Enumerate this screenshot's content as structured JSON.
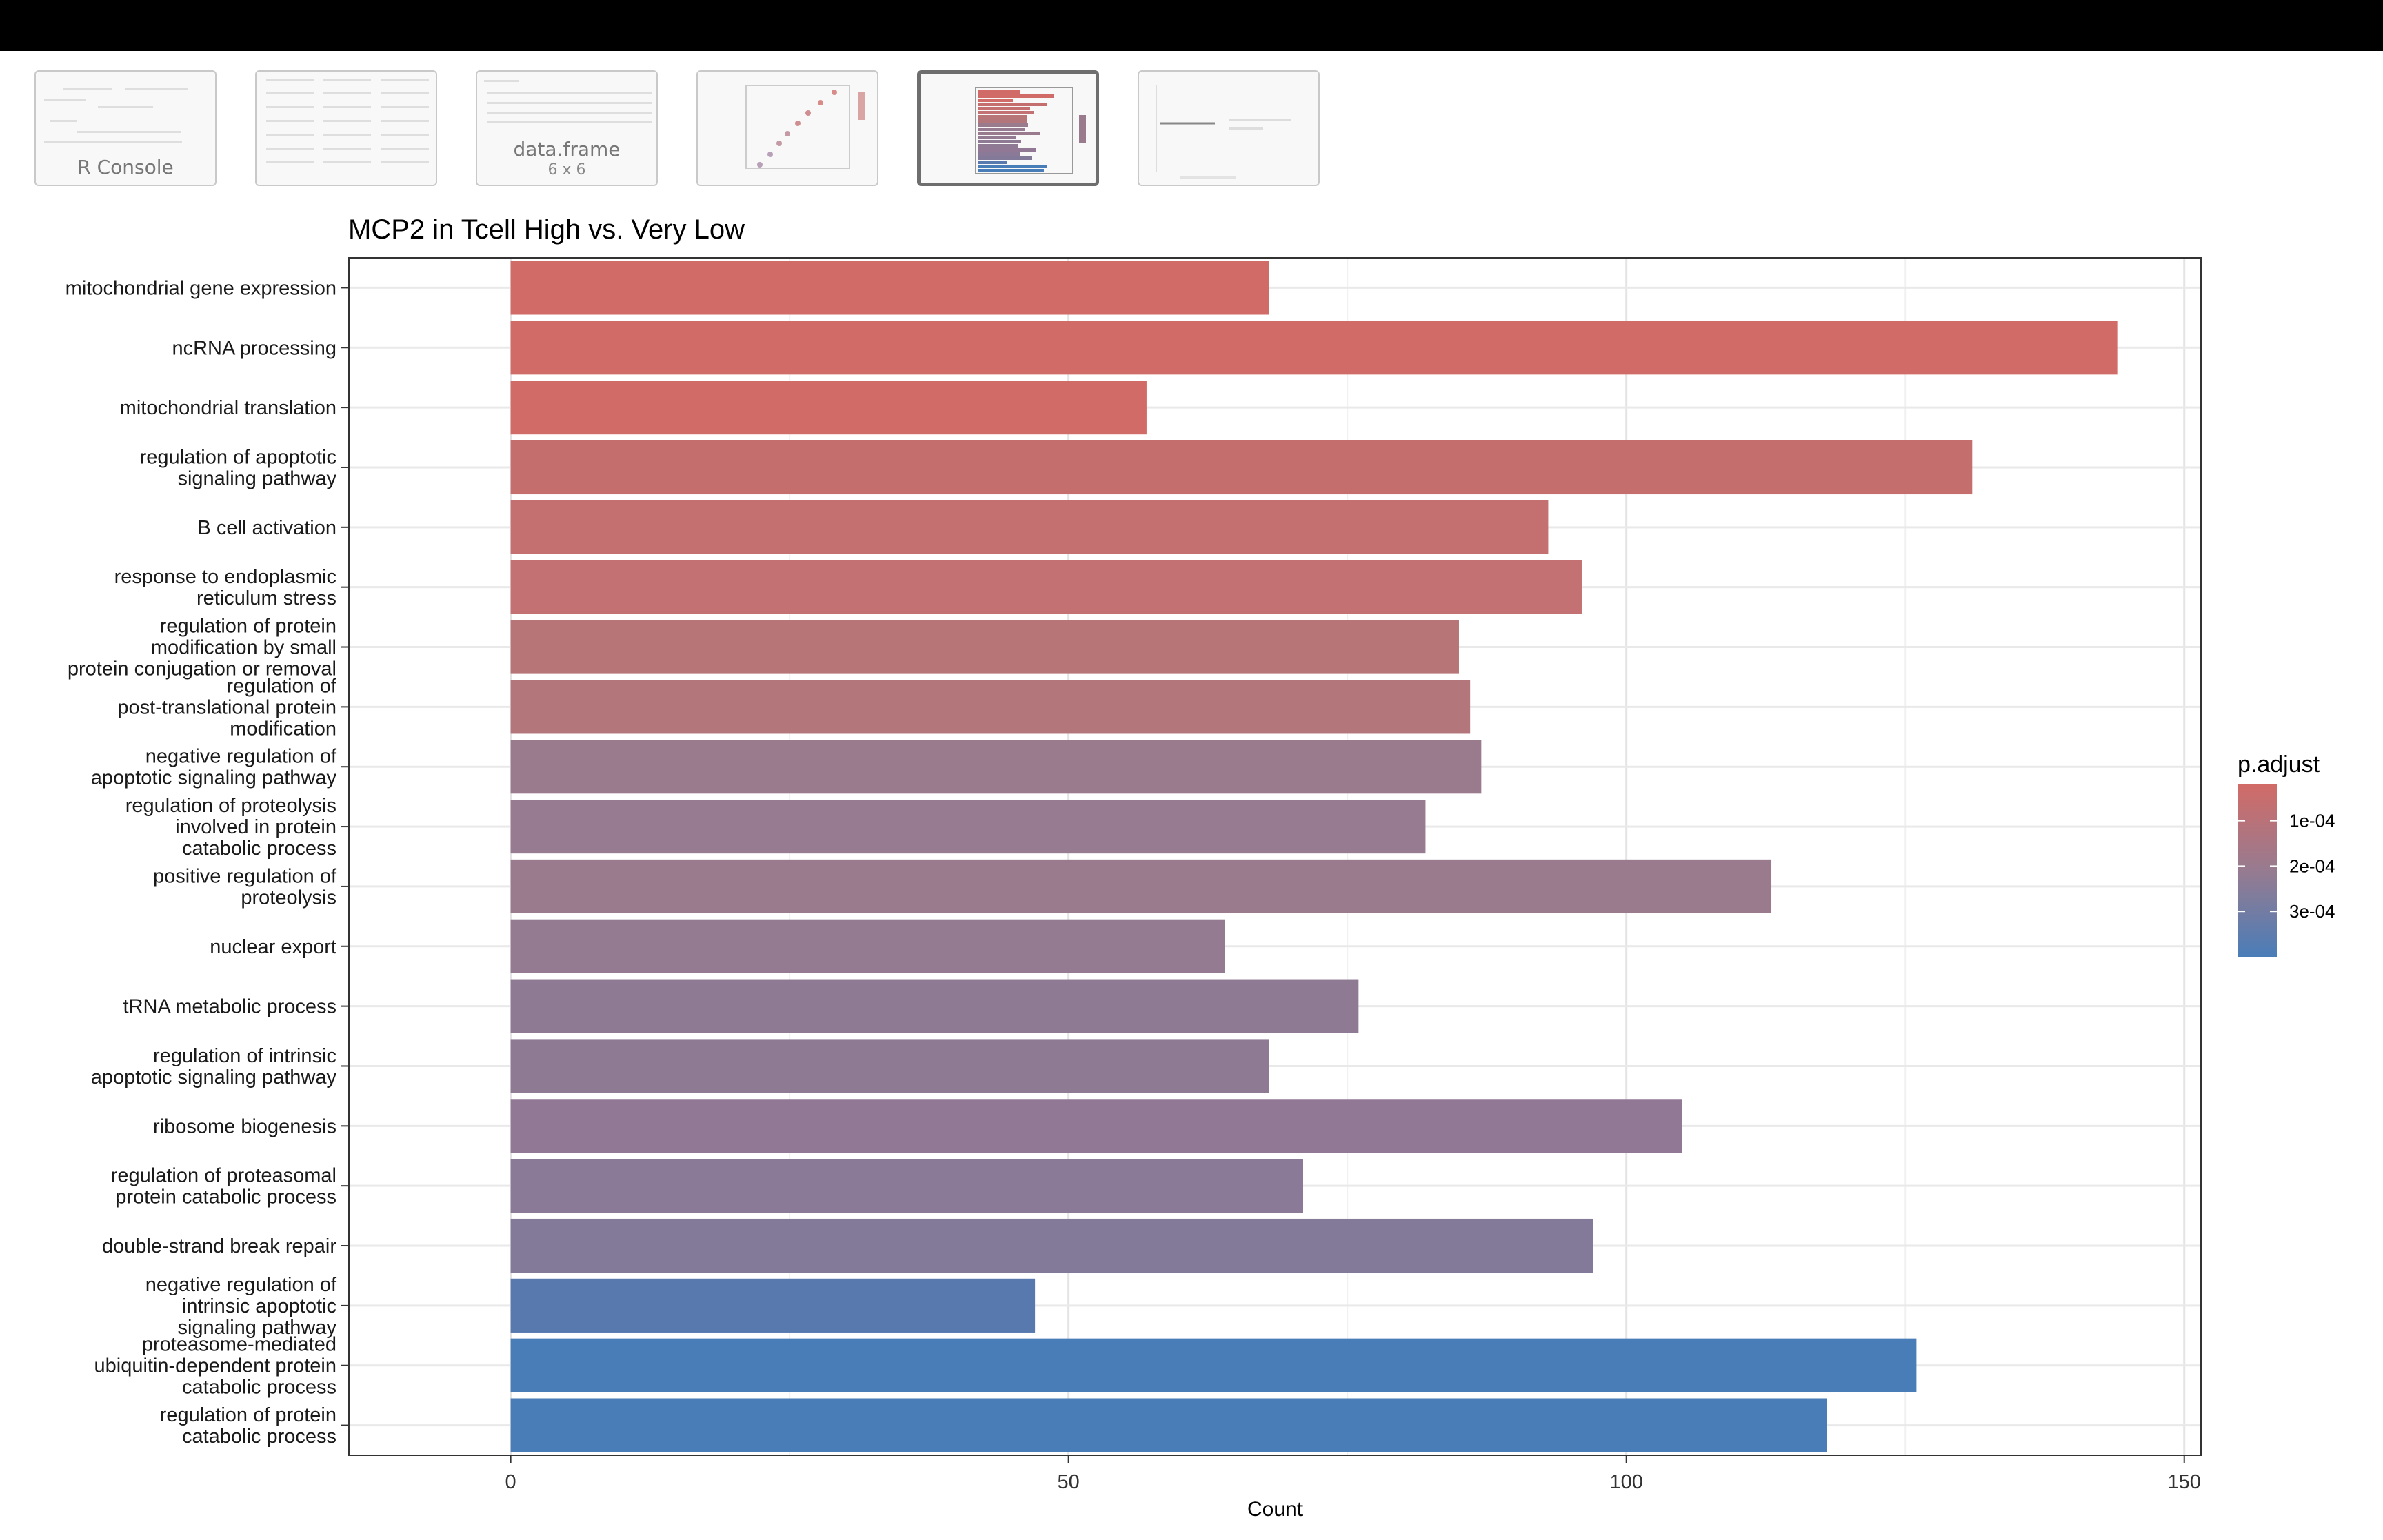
{
  "thumbnails": [
    {
      "name": "r-console-thumbnail",
      "label": "R Console",
      "sub": ""
    },
    {
      "name": "text-list-thumbnail",
      "label": "",
      "sub": ""
    },
    {
      "name": "data-frame-thumbnail",
      "label": "data.frame",
      "sub": "6 x 6"
    },
    {
      "name": "dotplot-thumbnail",
      "label": "",
      "sub": ""
    },
    {
      "name": "barplot-thumbnail",
      "label": "",
      "sub": ""
    },
    {
      "name": "lineplot-thumbnail",
      "label": "",
      "sub": ""
    }
  ],
  "active_thumbnail": 4,
  "chart_data": {
    "type": "bar",
    "orientation": "horizontal",
    "title": "MCP2 in Tcell High vs. Very Low",
    "xlabel": "Count",
    "ylabel": "",
    "xlim": [
      -14.5,
      151.5
    ],
    "xticks": [
      0,
      50,
      100,
      150
    ],
    "grid": true,
    "legend_position": "right",
    "categories": [
      [
        "mitochondrial gene expression"
      ],
      [
        "ncRNA processing"
      ],
      [
        "mitochondrial translation"
      ],
      [
        "regulation of apoptotic",
        "signaling pathway"
      ],
      [
        "B cell activation"
      ],
      [
        "response to endoplasmic",
        "reticulum stress"
      ],
      [
        "regulation of protein",
        "modification by small",
        "protein conjugation or removal"
      ],
      [
        "regulation of",
        "post-translational protein",
        "modification"
      ],
      [
        "negative regulation of",
        "apoptotic signaling pathway"
      ],
      [
        "regulation of proteolysis",
        "involved in protein",
        "catabolic process"
      ],
      [
        "positive regulation of",
        "proteolysis"
      ],
      [
        "nuclear export"
      ],
      [
        "tRNA metabolic process"
      ],
      [
        "regulation of intrinsic",
        "apoptotic signaling pathway"
      ],
      [
        "ribosome biogenesis"
      ],
      [
        "regulation of proteasomal",
        "protein catabolic process"
      ],
      [
        "double-strand break repair"
      ],
      [
        "negative regulation of",
        "intrinsic apoptotic",
        "signaling pathway"
      ],
      [
        "proteasome-mediated",
        "ubiquitin-dependent protein",
        "catabolic process"
      ],
      [
        "regulation of protein",
        "catabolic process"
      ]
    ],
    "values": [
      68,
      144,
      57,
      131,
      93,
      96,
      85,
      86,
      87,
      82,
      113,
      64,
      76,
      68,
      105,
      71,
      97,
      47,
      126,
      118
    ],
    "p_adjust": [
      3e-05,
      3e-05,
      3e-05,
      6e-05,
      7e-05,
      8e-05,
      0.00011,
      0.00013,
      0.00021,
      0.00022,
      0.00022,
      0.00023,
      0.00025,
      0.00025,
      0.00025,
      0.00027,
      0.00029,
      0.00037,
      0.00039,
      0.00039
    ],
    "colors": [
      "#d16b67",
      "#d16b67",
      "#d16b67",
      "#c46f6e",
      "#c47070",
      "#c37172",
      "#b77577",
      "#b2767b",
      "#9a7b8e",
      "#977b90",
      "#9a7b8e",
      "#957b91",
      "#8f7a94",
      "#8f7a94",
      "#917996",
      "#8a7997",
      "#837a9a",
      "#5879ae",
      "#497db7",
      "#497db7"
    ],
    "legend": {
      "title": "p.adjust",
      "labels": [
        "1e-04",
        "2e-04",
        "3e-04"
      ],
      "label_values": [
        0.0001,
        0.0002,
        0.0003
      ],
      "range": [
        2e-05,
        0.0004
      ],
      "color_low": "#d16b67",
      "color_high": "#4a7db8"
    }
  }
}
